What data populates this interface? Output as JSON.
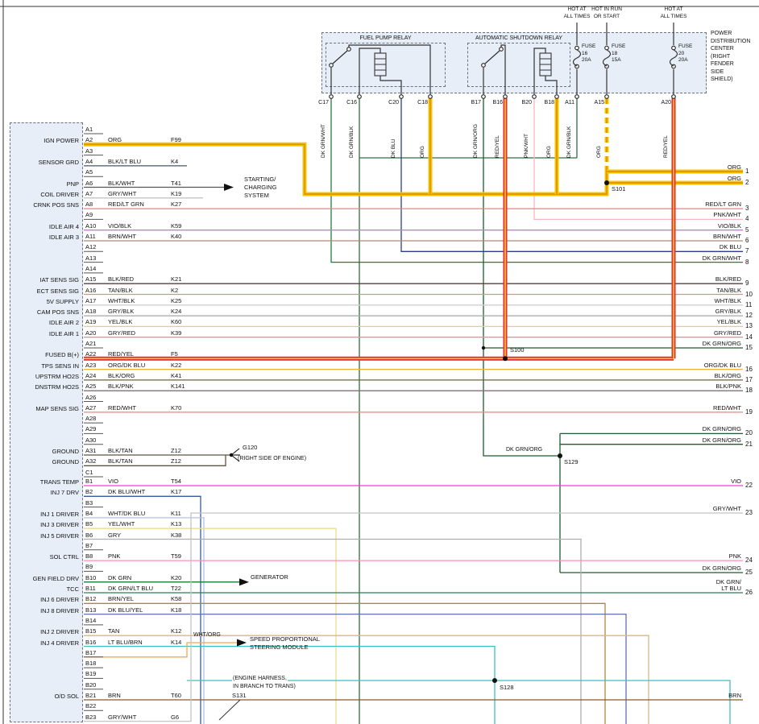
{
  "title": "PCM / Power Distribution Center wiring diagram",
  "wire_colors": {
    "ORG": "#f5c400",
    "ORG_CORE": "#e08b00",
    "REDYEL": "#e03131",
    "REDYEL_CORE": "#ffd43b",
    "RED_LT_GRN": "#ef7f7f",
    "PNK_WHT": "#f4b8c4",
    "VIO_BLK": "#c77dd4",
    "BRN_WHT": "#b08a70",
    "DK_BLU": "#2a3f8f",
    "DK_GRN_WHT": "#2a7a3d",
    "DK_GRN_BLK": "#2e6e3e",
    "DK_GRN_ORG": "#1e5c2e",
    "DK_GRN": "#1e7a33",
    "BLK_RED": "#554040",
    "TAN_BLK": "#c9a063",
    "WHT_BLK": "#cfcfcf",
    "GRY_BLK": "#a5a5a5",
    "YEL_BLK": "#ded27e",
    "GRY_RED": "#c7a0a0",
    "ORG_DK_BLU": "#f2b035",
    "BLK_ORG": "#73603a",
    "BLK_PNK": "#837077",
    "RED_WHT": "#f08c8c",
    "BLK_TAN": "#5f5342",
    "BLK_LT_BLU": "#49566b",
    "BLK_WHT": "#555555",
    "GRY_WHT": "#c4c4c4",
    "VIO": "#f03dd6",
    "DK_BLU_WHT": "#3a5a9e",
    "WHT_DK_BLU": "#b3c0e2",
    "YEL_WHT": "#e9dd90",
    "GRY": "#aeaeae",
    "PNK": "#ff8fb3",
    "DK_GRN_LT_BLU": "#2f7d55",
    "BRN_YEL": "#ad873f",
    "DK_BLU_YEL": "#5f74ad",
    "TAN": "#d6b68c",
    "LT_BLU_BRN": "#3ec0c0",
    "BRN": "#8a5a2a",
    "WHT_ORG": "#f2a94f",
    "STUB": "#555555"
  },
  "pdc": {
    "title_lines": [
      "POWER",
      "DISTRIBUTION",
      "CENTER",
      "(RIGHT",
      "FENDER",
      "SIDE",
      "SHIELD)"
    ],
    "hot_labels": [
      [
        "HOT AT",
        "ALL TIMES"
      ],
      [
        "HOT IN RUN",
        "OR START"
      ],
      [
        "HOT AT",
        "ALL TIMES"
      ]
    ],
    "relay_names": [
      "FUEL PUMP RELAY",
      "AUTOMATIC SHUTDOWN RELAY"
    ],
    "fuses": [
      [
        "FUSE",
        "16",
        "20A"
      ],
      [
        "FUSE",
        "18",
        "15A"
      ],
      [
        "FUSE",
        "20",
        "20A"
      ]
    ],
    "pins": [
      [
        "C17",
        "DK GRN/WHT"
      ],
      [
        "C16",
        "DK GRN/BLK"
      ],
      [
        "C20",
        "DK BLU"
      ],
      [
        "C18",
        "ORG"
      ],
      [
        "B17",
        "DK GRN/ORG"
      ],
      [
        "B16",
        "RED/YEL"
      ],
      [
        "B20",
        "PNK/WHT"
      ],
      [
        "B18",
        "ORG"
      ],
      [
        "A11",
        "DK GRN/BLK"
      ],
      [
        "A15",
        "ORG"
      ],
      [
        "A20",
        "RED/YEL"
      ]
    ]
  },
  "pcm": {
    "pins": [
      [
        "A1",
        "",
        ""
      ],
      [
        "A2",
        "ORG",
        "F99"
      ],
      [
        "A3",
        "",
        ""
      ],
      [
        "A4",
        "BLK/LT BLU",
        "K4"
      ],
      [
        "A5",
        "",
        ""
      ],
      [
        "A6",
        "BLK/WHT",
        "T41"
      ],
      [
        "A7",
        "GRY/WHT",
        "K19"
      ],
      [
        "A8",
        "RED/LT GRN",
        "K27"
      ],
      [
        "A9",
        "",
        ""
      ],
      [
        "A10",
        "VIO/BLK",
        "K59"
      ],
      [
        "A11",
        "BRN/WHT",
        "K40"
      ],
      [
        "A12",
        "",
        ""
      ],
      [
        "A13",
        "",
        ""
      ],
      [
        "A14",
        "",
        ""
      ],
      [
        "A15",
        "BLK/RED",
        "K21"
      ],
      [
        "A16",
        "TAN/BLK",
        "K2"
      ],
      [
        "A17",
        "WHT/BLK",
        "K25"
      ],
      [
        "A18",
        "GRY/BLK",
        "K24"
      ],
      [
        "A19",
        "YEL/BLK",
        "K60"
      ],
      [
        "A20",
        "GRY/RED",
        "K39"
      ],
      [
        "A21",
        "",
        ""
      ],
      [
        "A22",
        "RED/YEL",
        "F5"
      ],
      [
        "A23",
        "ORG/DK BLU",
        "K22"
      ],
      [
        "A24",
        "BLK/ORG",
        "K41"
      ],
      [
        "A25",
        "BLK/PNK",
        "K141"
      ],
      [
        "A26",
        "",
        ""
      ],
      [
        "A27",
        "RED/WHT",
        "K70"
      ],
      [
        "A28",
        "",
        ""
      ],
      [
        "A29",
        "",
        ""
      ],
      [
        "A30",
        "",
        ""
      ],
      [
        "A31",
        "BLK/TAN",
        "Z12"
      ],
      [
        "A32",
        "BLK/TAN",
        "Z12"
      ],
      [
        "C1",
        "",
        ""
      ],
      [
        "B1",
        "VIO",
        "T54"
      ],
      [
        "B2",
        "DK BLU/WHT",
        "K17"
      ],
      [
        "B3",
        "",
        ""
      ],
      [
        "B4",
        "WHT/DK BLU",
        "K11"
      ],
      [
        "B5",
        "YEL/WHT",
        "K13"
      ],
      [
        "B6",
        "GRY",
        "K38"
      ],
      [
        "B7",
        "",
        ""
      ],
      [
        "B8",
        "PNK",
        "T59"
      ],
      [
        "B9",
        "",
        ""
      ],
      [
        "B10",
        "DK GRN",
        "K20"
      ],
      [
        "B11",
        "DK GRN/LT BLU",
        "T22"
      ],
      [
        "B12",
        "BRN/YEL",
        "K58"
      ],
      [
        "B13",
        "DK BLU/YEL",
        "K18"
      ],
      [
        "B14",
        "",
        ""
      ],
      [
        "B15",
        "TAN",
        "K12"
      ],
      [
        "B16",
        "LT BLU/BRN",
        "K14"
      ],
      [
        "B17",
        "",
        ""
      ],
      [
        "B18",
        "",
        ""
      ],
      [
        "B19",
        "",
        ""
      ],
      [
        "B20",
        "",
        ""
      ],
      [
        "B21",
        "BRN",
        "T60"
      ],
      [
        "B22",
        "",
        ""
      ],
      [
        "B23",
        "GRY/WHT",
        "G6"
      ]
    ],
    "labels": [
      [
        "IGN POWER",
        "A2"
      ],
      [
        "SENSOR GRD",
        "A4"
      ],
      [
        "PNP",
        "A6"
      ],
      [
        "COIL DRIVER",
        "A7"
      ],
      [
        "CRNK POS SNS",
        "A8"
      ],
      [
        "IDLE AIR 4",
        "A10"
      ],
      [
        "IDLE AIR 3",
        "A11"
      ],
      [
        "IAT SENS SIG",
        "A15"
      ],
      [
        "ECT SENS SIG",
        "A16"
      ],
      [
        "5V SUPPLY",
        "A17"
      ],
      [
        "CAM POS SNS",
        "A18"
      ],
      [
        "IDLE AIR 2",
        "A19"
      ],
      [
        "IDLE AIR 1",
        "A20"
      ],
      [
        "FUSED B(+)",
        "A22"
      ],
      [
        "TPS SENS IN",
        "A23"
      ],
      [
        "UPSTRM HO2S",
        "A24"
      ],
      [
        "DNSTRM HO2S",
        "A25"
      ],
      [
        "MAP SENS SIG",
        "A27"
      ],
      [
        "GROUND",
        "A31"
      ],
      [
        "GROUND",
        "A32"
      ],
      [
        "TRANS TEMP",
        "B1"
      ],
      [
        "INJ 7 DRV",
        "B2"
      ],
      [
        "INJ 1 DRIVER",
        "B4"
      ],
      [
        "INJ 3 DRIVER",
        "B5"
      ],
      [
        "INJ 5 DRIVER",
        "B6"
      ],
      [
        "SOL CTRL",
        "B8"
      ],
      [
        "GEN FIELD DRV",
        "B10"
      ],
      [
        "TCC",
        "B11"
      ],
      [
        "INJ 6 DRIVER",
        "B12"
      ],
      [
        "INJ 8 DRIVER",
        "B13"
      ],
      [
        "INJ 2 DRIVER",
        "B15"
      ],
      [
        "INJ 4 DRIVER",
        "B16"
      ],
      [
        "O/D SOL",
        "B21"
      ]
    ]
  },
  "edge": [
    [
      "1",
      "ORG"
    ],
    [
      "2",
      "ORG"
    ],
    [
      "3",
      "RED/LT GRN"
    ],
    [
      "4",
      "PNK/WHT"
    ],
    [
      "5",
      "VIO/BLK"
    ],
    [
      "6",
      "BRN/WHT"
    ],
    [
      "7",
      "DK BLU"
    ],
    [
      "8",
      "DK GRN/WHT"
    ],
    [
      "9",
      "BLK/RED"
    ],
    [
      "10",
      "TAN/BLK"
    ],
    [
      "11",
      "WHT/BLK"
    ],
    [
      "12",
      "GRY/BLK"
    ],
    [
      "13",
      "YEL/BLK"
    ],
    [
      "14",
      "GRY/RED"
    ],
    [
      "15",
      "DK GRN/ORG"
    ],
    [
      "16",
      "ORG/DK BLU"
    ],
    [
      "17",
      "BLK/ORG"
    ],
    [
      "18",
      "BLK/PNK"
    ],
    [
      "19",
      "RED/WHT"
    ],
    [
      "20",
      "DK GRN/ORG"
    ],
    [
      "21",
      "DK GRN/ORG"
    ],
    [
      "22",
      "VIO"
    ],
    [
      "23",
      "GRY/WHT"
    ],
    [
      "24",
      "PNK"
    ],
    [
      "25",
      "DK GRN/ORG"
    ],
    [
      "26",
      "DK GRN/|LT BLU"
    ],
    [
      "",
      "BRN"
    ]
  ],
  "annotations": {
    "starting_lines": [
      "STARTING/",
      "CHARGING",
      "SYSTEM"
    ],
    "g120": "G120",
    "g120_note": "(RIGHT SIDE OF ENGINE)",
    "generator": "GENERATOR",
    "wht_org": "WHT/ORG",
    "speed_lines": [
      "SPEED PROPORTIONAL",
      "STEERING MODULE"
    ],
    "harness_lines": [
      "(ENGINE HARNESS,",
      "IN BRANCH TO TRANS)"
    ],
    "s131": "S131",
    "s100": "S100",
    "s101": "S101",
    "s128": "S128",
    "s129": "S129",
    "dk_grn_org_label": "DK GRN/ORG"
  }
}
